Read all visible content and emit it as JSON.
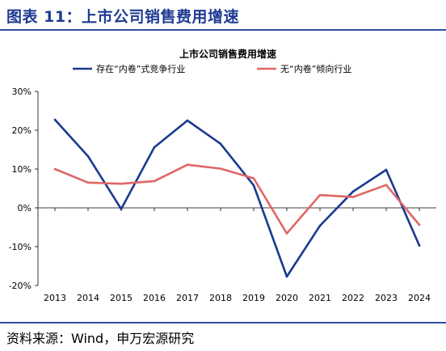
{
  "figure": {
    "title": "图表 11：上市公司销售费用增速",
    "source": "资料来源：Wind，申万宏源研究"
  },
  "colors": {
    "title": "#1f3a93",
    "rule": "#2e4fa0",
    "series_1": "#1a3a8f",
    "series_2": "#e06666"
  },
  "chart_data": {
    "type": "line",
    "title": "上市公司销售费用增速",
    "xlabel": "",
    "ylabel": "",
    "x": [
      "2013",
      "2014",
      "2015",
      "2016",
      "2017",
      "2018",
      "2019",
      "2020",
      "2021",
      "2022",
      "2023",
      "2024"
    ],
    "ylim": [
      -20,
      30
    ],
    "yticks": [
      -20,
      -10,
      0,
      10,
      20,
      30
    ],
    "ytick_labels": [
      "-20%",
      "-10%",
      "0%",
      "10%",
      "20%",
      "30%"
    ],
    "grid": false,
    "legend_position": "top",
    "series": [
      {
        "name": "存在“内卷”式竞争行业",
        "values": [
          22.7,
          13.3,
          -0.3,
          15.6,
          22.5,
          16.5,
          5.8,
          -17.7,
          -4.6,
          4.2,
          9.8,
          -9.7
        ]
      },
      {
        "name": "无“内卷”倾向行业",
        "values": [
          10.0,
          6.5,
          6.2,
          6.9,
          11.1,
          10.1,
          7.6,
          -6.6,
          3.3,
          2.8,
          5.9,
          -4.4
        ]
      }
    ]
  }
}
